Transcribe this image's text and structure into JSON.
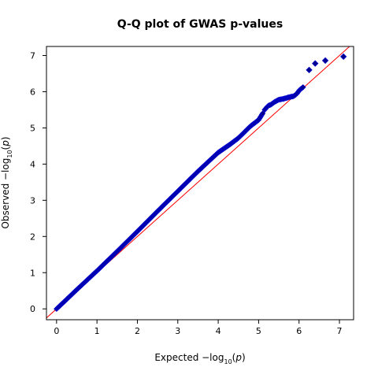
{
  "chart_data": {
    "type": "scatter",
    "title": "Q-Q plot of GWAS p-values",
    "xlabel": {
      "prefix": "Expected  −log",
      "subscript": "10",
      "open": "(",
      "var": "p",
      "close": ")"
    },
    "ylabel": {
      "prefix": "Observed  −log",
      "subscript": "10",
      "open": "(",
      "var": "p",
      "close": ")"
    },
    "xlim": [
      -0.25,
      7.35
    ],
    "ylim": [
      -0.3,
      7.25
    ],
    "xticks": [
      0,
      1,
      2,
      3,
      4,
      5,
      6,
      7
    ],
    "yticks": [
      0,
      1,
      2,
      3,
      4,
      5,
      6,
      7
    ],
    "reference_line": {
      "x": [
        -0.25,
        7.35
      ],
      "y": [
        -0.25,
        7.35
      ],
      "color": "#ff0000"
    },
    "marker": {
      "shape": "diamond",
      "fill": "#00008b",
      "edge": "#0000cd"
    },
    "grid": false,
    "series": [
      {
        "dense_curve": {
          "x": [
            0,
            0.2,
            0.5,
            1.0,
            1.5,
            2.0,
            2.5,
            3.0,
            3.5,
            4.0,
            4.3,
            4.5,
            4.8,
            5.0,
            5.1
          ],
          "y": [
            0,
            0.21,
            0.53,
            1.05,
            1.59,
            2.14,
            2.7,
            3.25,
            3.8,
            4.32,
            4.55,
            4.72,
            5.05,
            5.22,
            5.4
          ]
        },
        "upper_tail": {
          "x": [
            5.15,
            5.2,
            5.25,
            5.3,
            5.4,
            5.5,
            5.6,
            5.7,
            5.75,
            5.85,
            5.9,
            5.95,
            6.0,
            6.05,
            6.12
          ],
          "y": [
            5.5,
            5.57,
            5.62,
            5.64,
            5.72,
            5.78,
            5.8,
            5.83,
            5.85,
            5.87,
            5.9,
            5.95,
            6.03,
            6.08,
            6.14
          ]
        },
        "outliers": {
          "x": [
            6.25,
            6.4,
            6.65,
            7.1
          ],
          "y": [
            6.6,
            6.78,
            6.86,
            6.97
          ]
        }
      }
    ]
  }
}
